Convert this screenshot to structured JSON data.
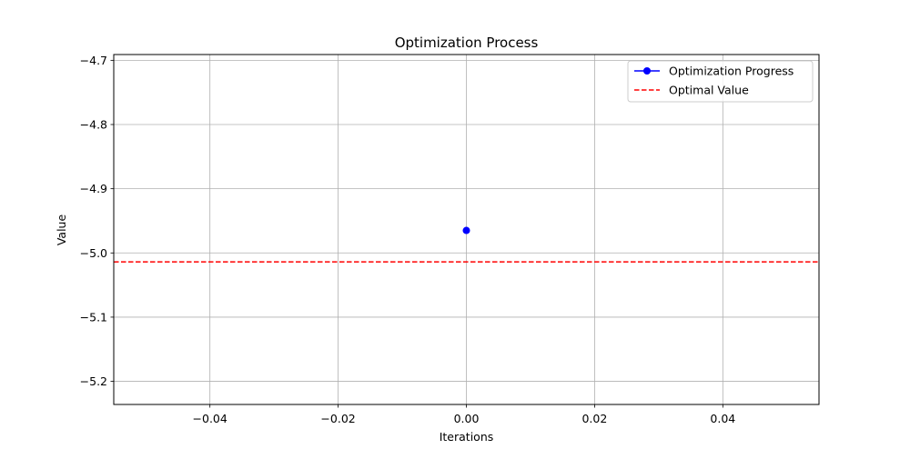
{
  "chart_data": {
    "type": "line",
    "title": "Optimization Process",
    "xlabel": "Iterations",
    "ylabel": "Value",
    "xlim": [
      -0.055,
      0.055
    ],
    "ylim": [
      -5.236,
      -4.691
    ],
    "xticks": [
      -0.04,
      -0.02,
      0.0,
      0.02,
      0.04
    ],
    "xtick_labels": [
      "−0.04",
      "−0.02",
      "0.00",
      "0.02",
      "0.04"
    ],
    "yticks": [
      -4.7,
      -4.8,
      -4.9,
      -5.0,
      -5.1,
      -5.2
    ],
    "ytick_labels": [
      "−4.7",
      "−4.8",
      "−4.9",
      "−5.0",
      "−5.1",
      "−5.2"
    ],
    "grid": true,
    "legend_position": "top-right",
    "series": [
      {
        "name": "Optimization Progress",
        "kind": "line-marker",
        "color": "#0000ff",
        "x": [
          0
        ],
        "y": [
          -4.965
        ]
      }
    ],
    "hlines": [
      {
        "name": "Optimal Value",
        "style": "dashed",
        "color": "#ff0000",
        "y": -5.014
      }
    ]
  }
}
